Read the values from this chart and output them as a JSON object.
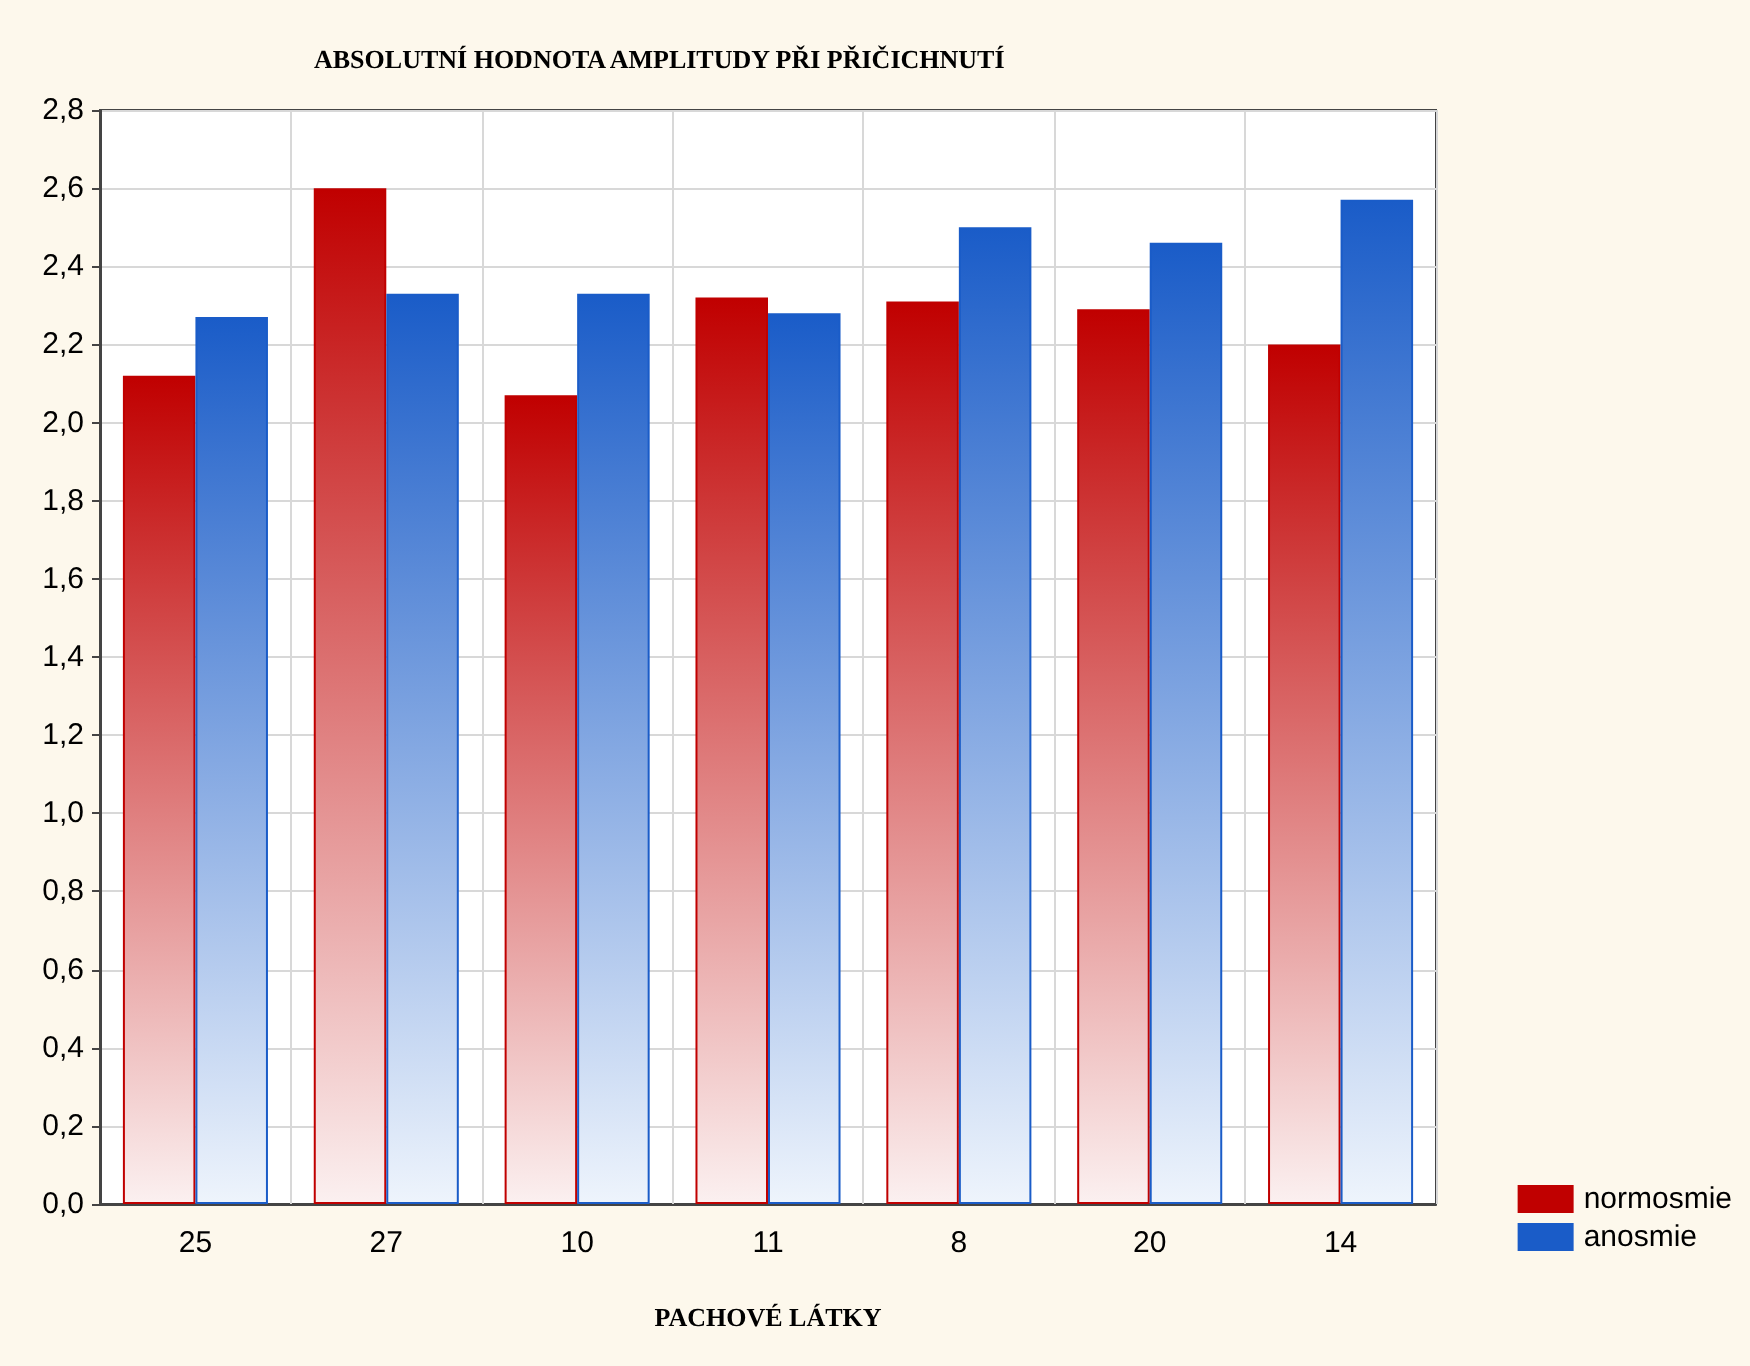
{
  "chart_data": {
    "type": "bar",
    "title": "ABSOLUTNÍ HODNOTA AMPLITUDY PŘI PŘIČICHNUTÍ",
    "xlabel": "PACHOVÉ LÁTKY",
    "categories": [
      "25",
      "27",
      "10",
      "11",
      "8",
      "20",
      "14"
    ],
    "series": [
      {
        "name": "normosmie",
        "color": "#c00000",
        "values": [
          2.12,
          2.6,
          2.07,
          2.32,
          2.31,
          2.29,
          2.2
        ]
      },
      {
        "name": "anosmie",
        "color": "#1a5cc8",
        "values": [
          2.27,
          2.33,
          2.33,
          2.28,
          2.5,
          2.46,
          2.57
        ]
      }
    ],
    "ylim": [
      0,
      2.8
    ],
    "yticks": [
      {
        "value": 0,
        "label": "0,0"
      },
      {
        "value": 0.2,
        "label": "0,2"
      },
      {
        "value": 0.4,
        "label": "0,4"
      },
      {
        "value": 0.6,
        "label": "0,6"
      },
      {
        "value": 0.8,
        "label": "0,8"
      },
      {
        "value": 1,
        "label": "1,0"
      },
      {
        "value": 1.2,
        "label": "1,2"
      },
      {
        "value": 1.4,
        "label": "1,4"
      },
      {
        "value": 1.6,
        "label": "1,6"
      },
      {
        "value": 1.8,
        "label": "1,8"
      },
      {
        "value": 2,
        "label": "2,0"
      },
      {
        "value": 2.2,
        "label": "2,2"
      },
      {
        "value": 2.4,
        "label": "2,4"
      },
      {
        "value": 2.6,
        "label": "2,6"
      },
      {
        "value": 2.8,
        "label": "2,8"
      }
    ],
    "grid": true,
    "legend": "bottom right"
  }
}
